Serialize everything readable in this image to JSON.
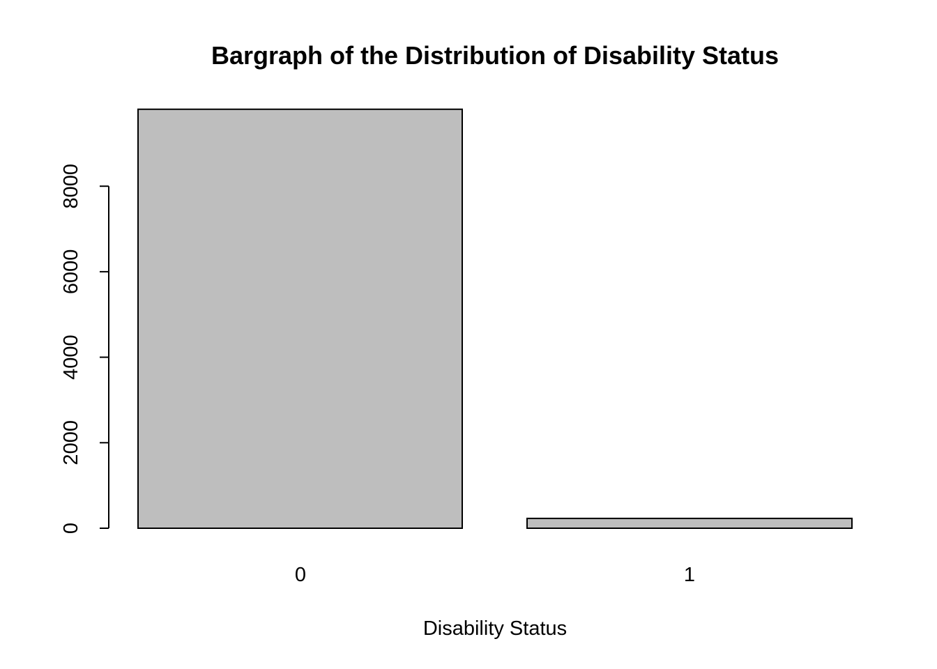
{
  "chart_data": {
    "type": "bar",
    "title": "Bargraph of the Distribution of Disability Status",
    "xlabel": "Disability Status",
    "ylabel": "",
    "categories": [
      "0",
      "1"
    ],
    "values": [
      9800,
      230
    ],
    "ylim": [
      0,
      9800
    ],
    "yticks": [
      0,
      2000,
      4000,
      6000,
      8000
    ],
    "ytick_labels": [
      "0",
      "2000",
      "4000",
      "6000",
      "8000"
    ],
    "grid": false,
    "legend": "none",
    "colors": {
      "bar_fill": "#bebebe",
      "bar_stroke": "#000000",
      "axis": "#000000",
      "text": "#000000",
      "background": "#ffffff"
    }
  }
}
